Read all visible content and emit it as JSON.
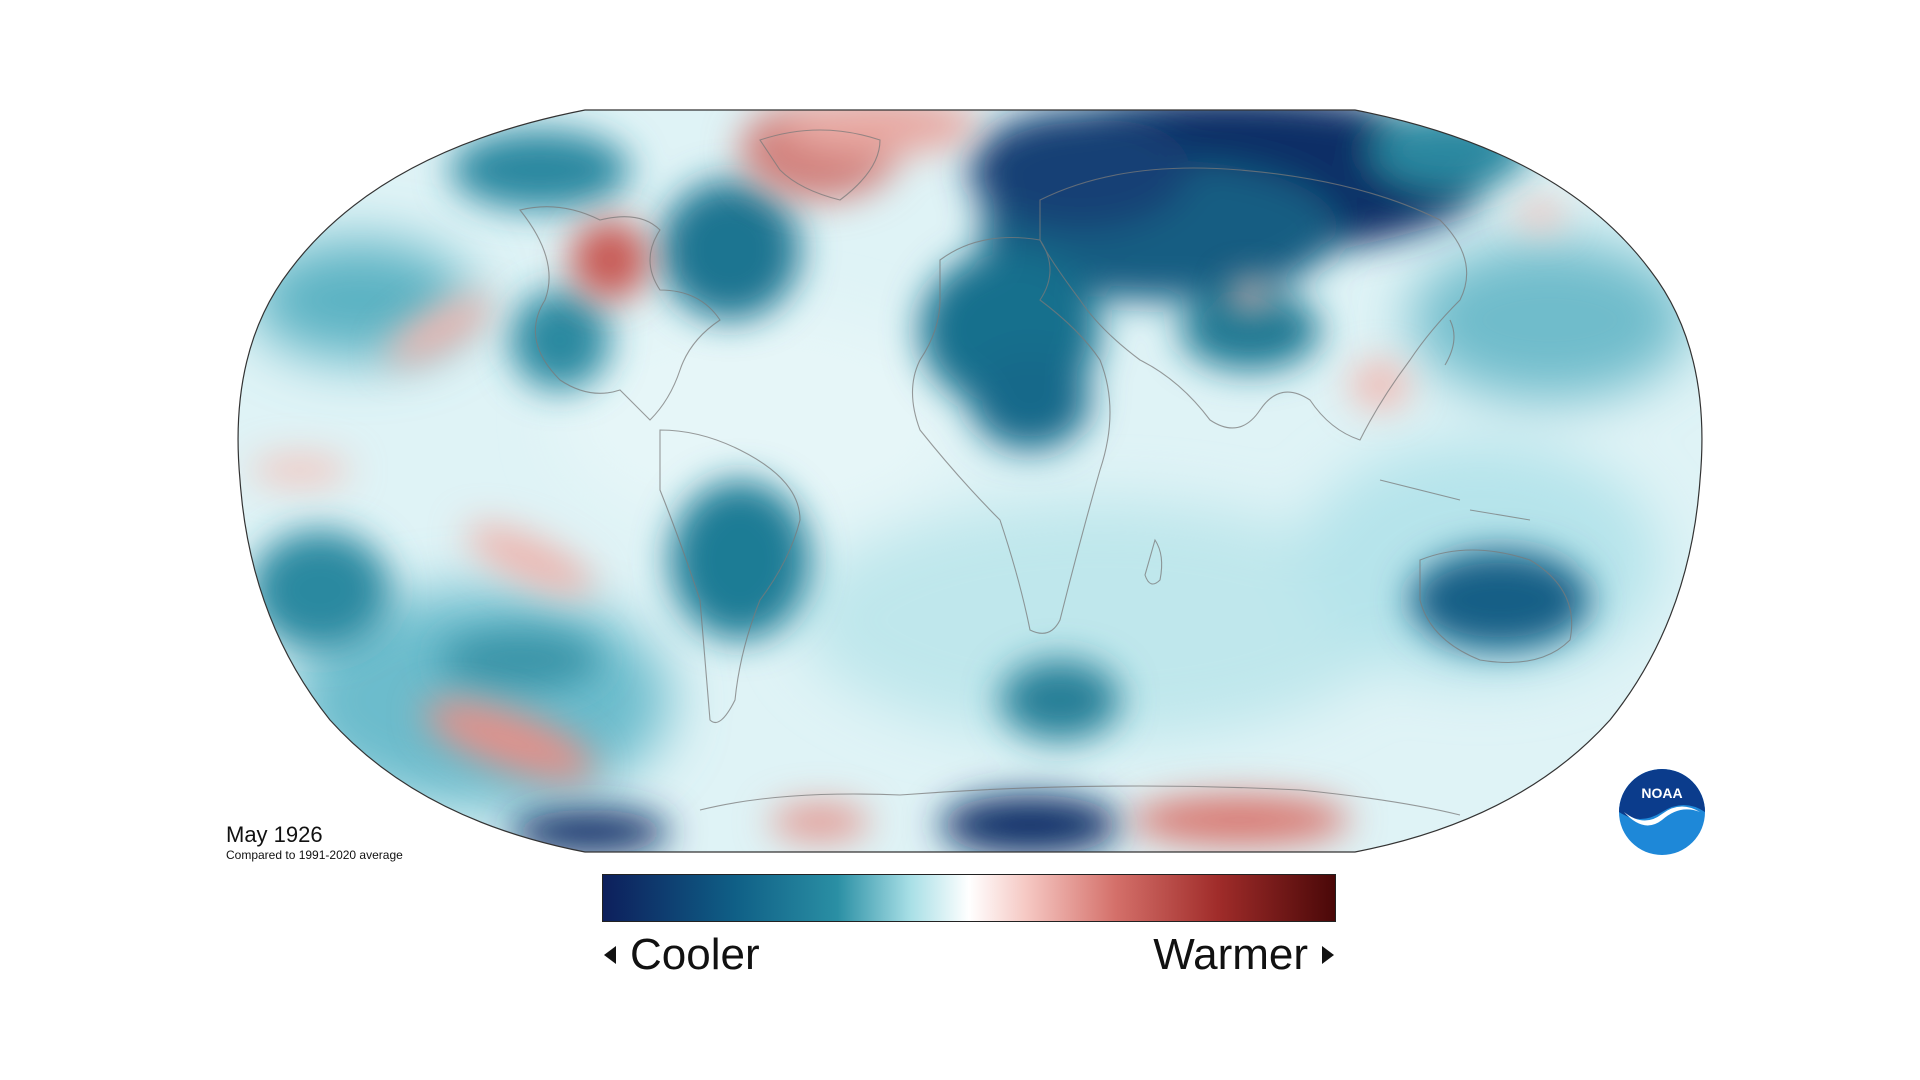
{
  "map": {
    "projection": "Robinson-like world map",
    "date_label": "May 1926",
    "comparison_label": "Compared to 1991-2020 average"
  },
  "legend": {
    "left_label": "Cooler",
    "right_label": "Warmer",
    "colors": [
      "#0d1f5c",
      "#0f5f86",
      "#2a8fa4",
      "#a8dfe6",
      "#ffffff",
      "#f5c7c2",
      "#d4706a",
      "#a02c2a",
      "#4a0808"
    ]
  },
  "branding": {
    "logo_text": "NOAA",
    "logo_colors": [
      "#0b3c8c",
      "#1e88d8",
      "#ffffff"
    ]
  },
  "regions": {
    "cool": [
      "Northern Russia / Siberia",
      "North Atlantic",
      "Central Africa / Sahara",
      "Southern South America",
      "Northern Australia",
      "Southern Ocean near Antarctica"
    ],
    "warm": [
      "Greenland",
      "Northeastern Canada",
      "Eastern Pacific",
      "Southeast Pacific",
      "West Antarctica coast",
      "Southeast Asia"
    ]
  }
}
